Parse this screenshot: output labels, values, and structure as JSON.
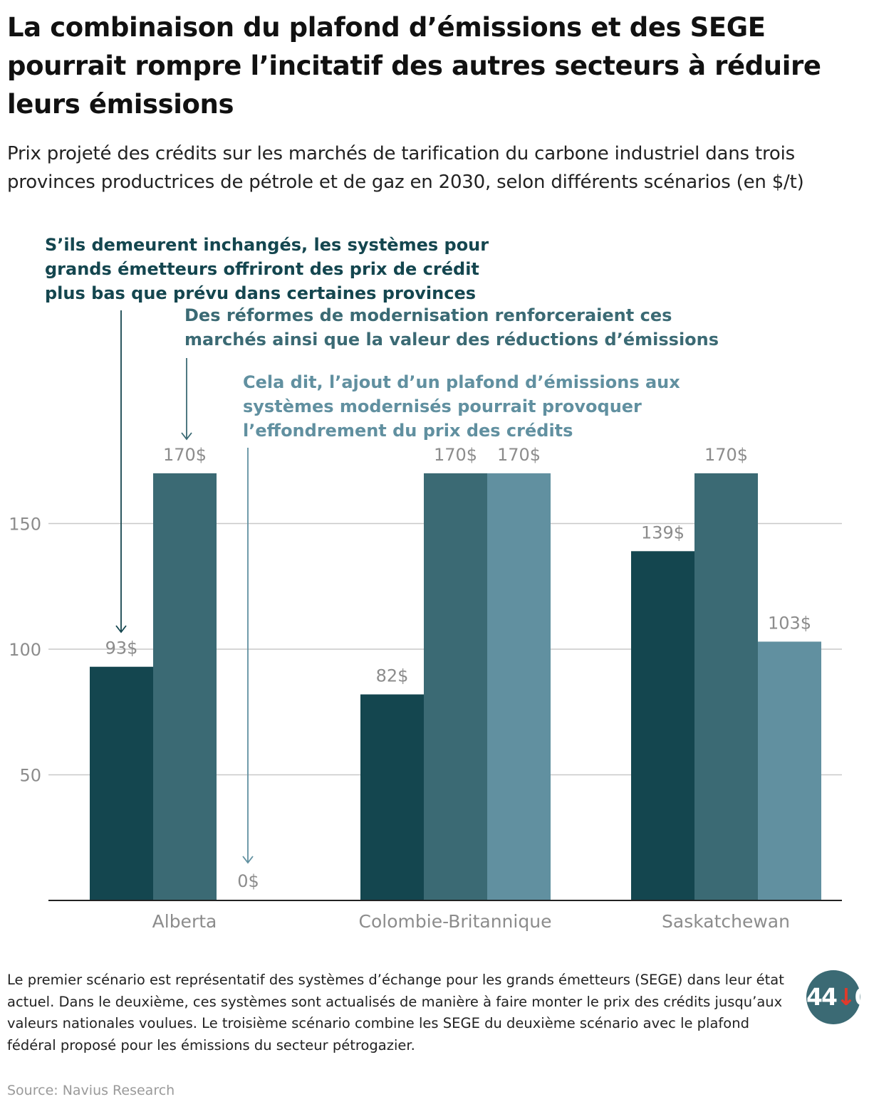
{
  "header": {
    "title": "La combinaison du plafond d’émissions et des SEGE pourrait rompre l’incitatif des autres secteurs à réduire leurs émissions",
    "subtitle": "Prix projeté des crédits sur les marchés de tarification du carbone industriel dans trois provinces productrices de pétrole et de gaz en 2030, selon différents scénarios (en $/t)"
  },
  "annotations": [
    {
      "lines": [
        "S’ils demeurent inchangés, les systèmes pour",
        "grands émetteurs offriront des prix de crédit",
        "plus bas que prévu dans certaines provinces"
      ],
      "color": "#14464f"
    },
    {
      "lines": [
        "Des réformes de modernisation renforceraient ces",
        "marchés ainsi que la valeur des réductions d’émissions"
      ],
      "color": "#3b6a74"
    },
    {
      "lines": [
        "Cela dit, l’ajout d’un plafond d’émissions aux",
        "systèmes modernisés pourrait provoquer",
        "l’effondrement du prix des crédits"
      ],
      "color": "#6190a0"
    }
  ],
  "chart_data": {
    "type": "bar",
    "categories": [
      "Alberta",
      "Colombie-Britannique",
      "Saskatchewan"
    ],
    "series": [
      {
        "values": [
          93,
          82,
          139
        ],
        "labels": [
          "93$",
          "82$",
          "139$"
        ],
        "color": "#14464f"
      },
      {
        "values": [
          170,
          170,
          170
        ],
        "labels": [
          "170$",
          "170$",
          "170$"
        ],
        "color": "#3b6a74"
      },
      {
        "values": [
          0,
          170,
          103
        ],
        "labels": [
          "0$",
          "170$",
          "103$"
        ],
        "color": "#6190a0"
      }
    ],
    "yticks": [
      50,
      100,
      150
    ],
    "ylim": [
      0,
      200
    ],
    "grid": true,
    "xlabel": "",
    "ylabel": ""
  },
  "footer": {
    "note": "Le premier scénario est représentatif des systèmes d’échange pour les grands émetteurs (SEGE) dans leur état actuel. Dans le deuxième, ces systèmes sont actualisés de manière à faire monter le prix des crédits jusqu’aux valeurs nationales voulues. Le troisième scénario combine les SEGE du deuxième scénario avec le plafond fédéral proposé pour les émissions du secteur pétrogazier.",
    "source": "Source: Navius Research",
    "logo_text": "44",
    "logo_arrow": "↓"
  }
}
